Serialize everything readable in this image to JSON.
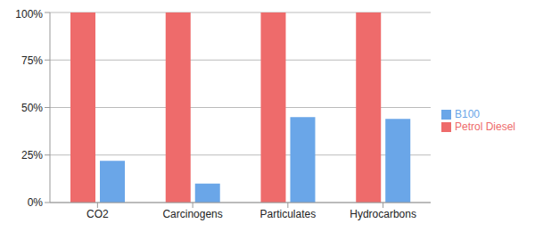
{
  "chart_data": {
    "type": "bar",
    "categories": [
      "CO2",
      "Carcinogens",
      "Particulates",
      "Hydrocarbons"
    ],
    "series": [
      {
        "name": "Petrol Diesel",
        "color": "#ee6b6b",
        "values": [
          100,
          100,
          100,
          100
        ]
      },
      {
        "name": "B100",
        "color": "#6aa6e8",
        "values": [
          22,
          10,
          45,
          44
        ]
      }
    ],
    "ylim": [
      0,
      100
    ],
    "yticks": [
      {
        "value": 0,
        "label": "0%"
      },
      {
        "value": 25,
        "label": "25%"
      },
      {
        "value": 50,
        "label": "50%"
      },
      {
        "value": 75,
        "label": "75%"
      },
      {
        "value": 100,
        "label": "100%"
      }
    ],
    "grid": true,
    "legend": "right"
  }
}
